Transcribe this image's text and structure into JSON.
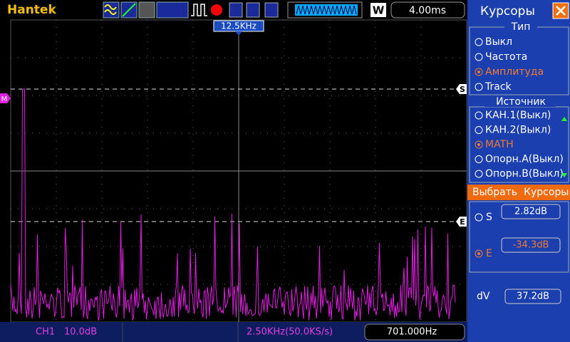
{
  "header": {
    "brand": "Hantek",
    "badge": "W",
    "timebase": "4.00ms"
  },
  "screen": {
    "trigger_position": "12.5KHz",
    "marker_math": "M",
    "cursor_s": "S",
    "cursor_e": "E"
  },
  "sidebar": {
    "title": "Курсоры",
    "type_group": {
      "title": "Тип",
      "options": [
        "Выкл",
        "Частота",
        "Амплитуда",
        "Track"
      ],
      "selected": 2
    },
    "source_group": {
      "title": "Источник",
      "options": [
        "КАН.1(Выкл)",
        "КАН.2(Выкл)",
        "MATH",
        "Опорн.А(Выкл)",
        "Опорн.В(Выкл)"
      ],
      "selected": 2
    },
    "select_button": "Выбрать  Курсоры",
    "s_label": "S",
    "s_value": "2.82dB",
    "e_label": "E",
    "e_value": "-34.3dB",
    "dv_label": "dV",
    "dv_value": "37.2dB"
  },
  "status": {
    "channel": "CH1",
    "scale": "10.0dB",
    "span": "2.50KHz(50.0KS/s)",
    "frequency": "701.000Hz"
  }
}
